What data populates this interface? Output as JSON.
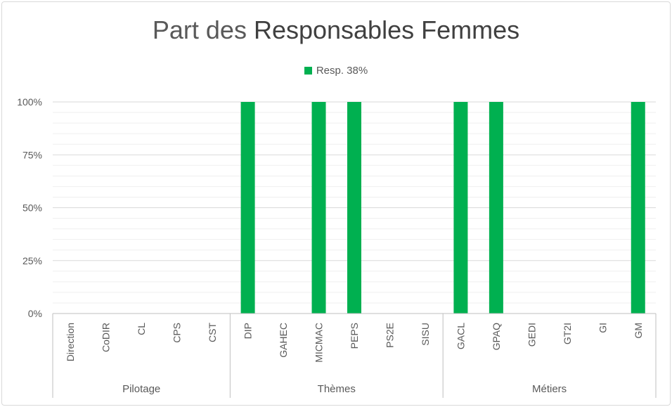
{
  "chart_data": {
    "type": "bar",
    "title_prefix": "Part des ",
    "title_main": "Responsables Femmes",
    "legend_label": "Resp. 38%",
    "series_color": "#00b050",
    "y_ticks": [
      "0%",
      "25%",
      "50%",
      "75%",
      "100%"
    ],
    "ylim": [
      0,
      1
    ],
    "grid": true,
    "legend_position": "top",
    "categories": [
      "Direction",
      "CoDIR",
      "CL",
      "CPS",
      "CST",
      "DIP",
      "GAHEC",
      "MICMAC",
      "PEPS",
      "PS2E",
      "SISU",
      "GACL",
      "GPAQ",
      "GEDI",
      "GT2I",
      "GI",
      "GM"
    ],
    "groups": [
      {
        "name": "Pilotage",
        "count": 5
      },
      {
        "name": "Thèmes",
        "count": 6
      },
      {
        "name": "Métiers",
        "count": 6
      }
    ],
    "series": [
      {
        "name": "Resp. 38%",
        "values": [
          0,
          0,
          0,
          0,
          0,
          1,
          0,
          1,
          1,
          0,
          0,
          1,
          1,
          0,
          0,
          0,
          1
        ]
      }
    ]
  }
}
